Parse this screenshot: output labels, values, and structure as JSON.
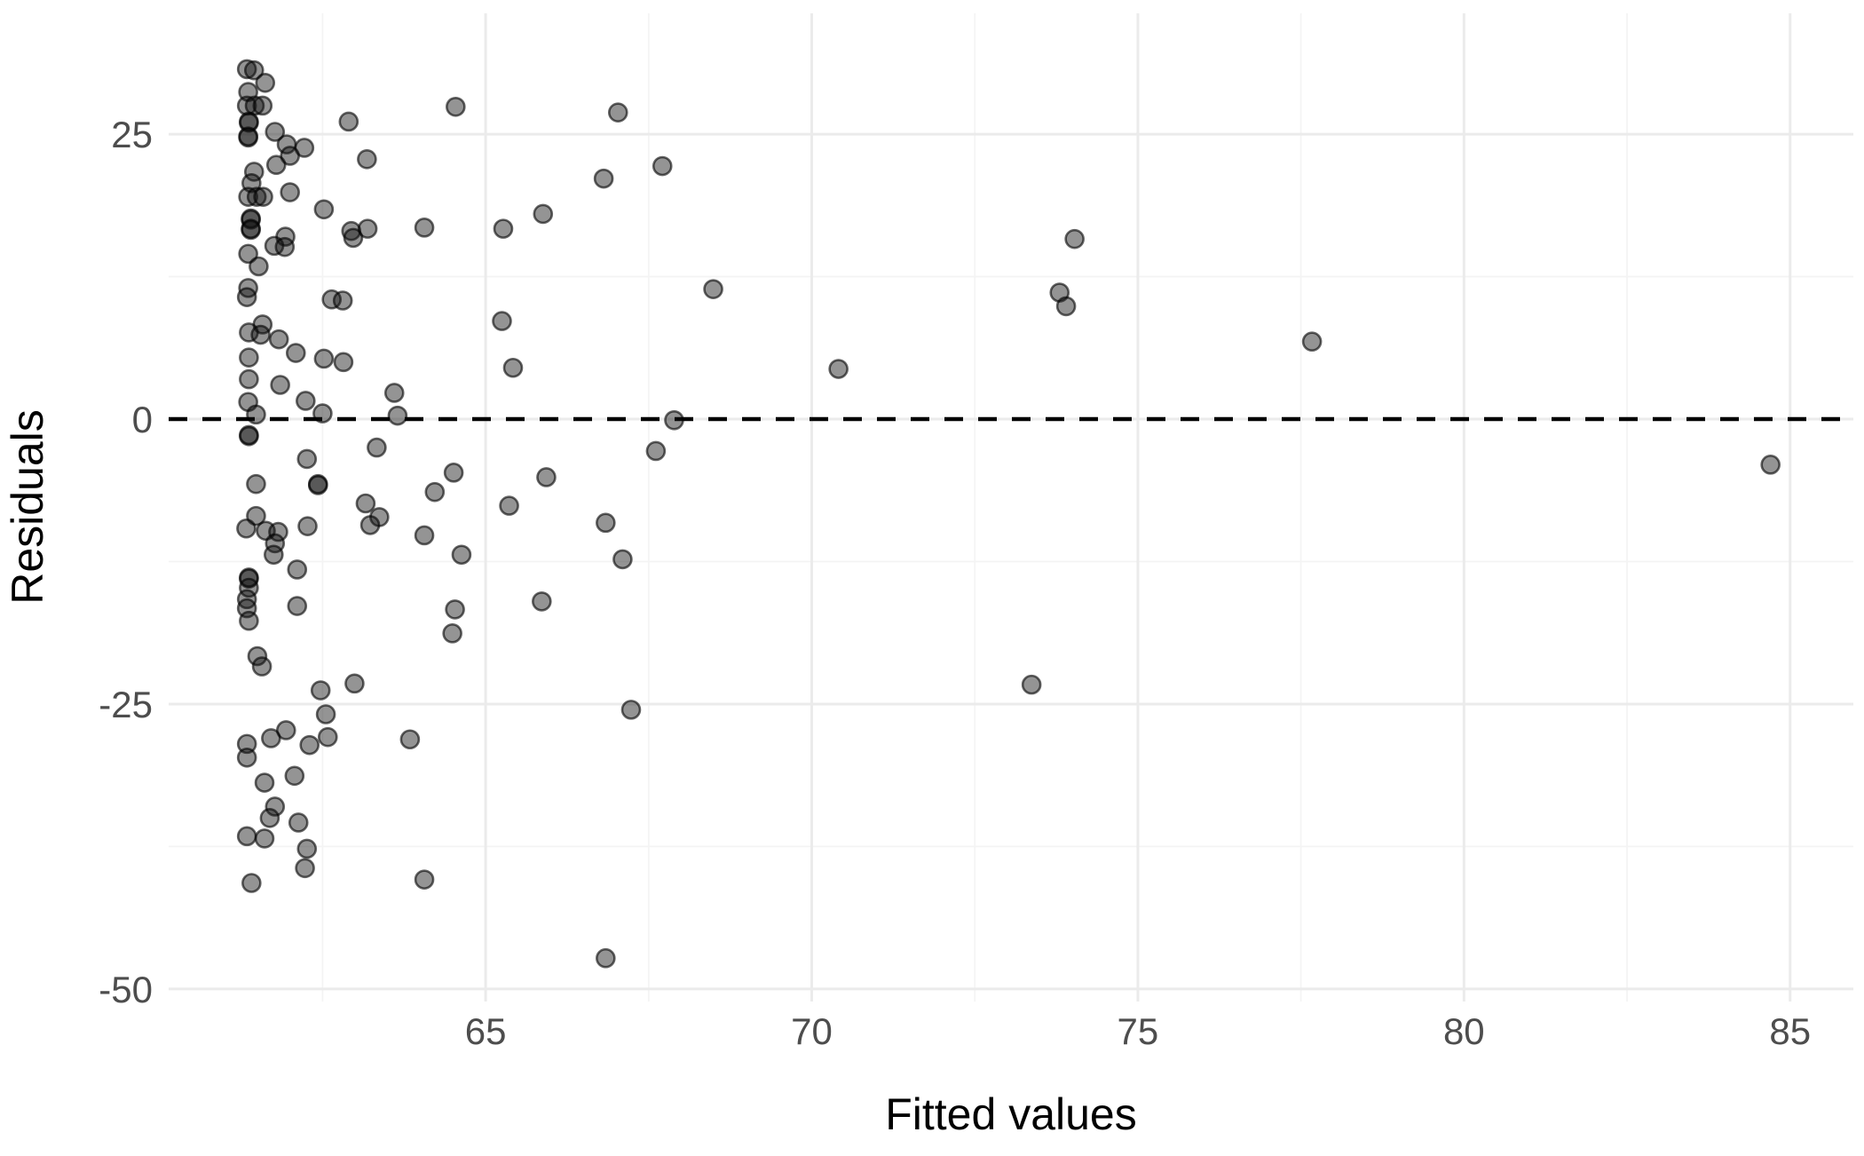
{
  "chart_data": {
    "type": "scatter",
    "title": "",
    "xlabel": "Fitted values",
    "ylabel": "Residuals",
    "xlim": [
      60.14,
      85.97
    ],
    "ylim": [
      -51.1,
      35.6
    ],
    "x_ticks": {
      "values": [
        65,
        70,
        75,
        80,
        85
      ],
      "labels": [
        "65",
        "70",
        "75",
        "80",
        "85"
      ]
    },
    "y_ticks": {
      "values": [
        25,
        0,
        -25,
        -50
      ],
      "labels": [
        "25",
        "0",
        "-25",
        "-50"
      ]
    },
    "x_minor": [
      62.5,
      67.5,
      72.5,
      77.5,
      82.5
    ],
    "y_minor": [
      12.5,
      -12.5,
      -37.5
    ],
    "grid": true,
    "legend": "none",
    "reference_line": {
      "y": 0,
      "linetype": "dashed",
      "color": "#000000"
    },
    "point_style": {
      "fill": "#111111",
      "fill_opacity": 0.45,
      "stroke": "#000000",
      "stroke_opacity": 0.6,
      "radius": 10,
      "stroke_width": 2.6
    },
    "colors": {
      "background": "#FFFFFF",
      "grid_major": "#EBEBEB",
      "grid_minor": "#F4F4F4",
      "tick_text": "#4D4D4D",
      "axis_title": "#000000"
    },
    "points": [
      [
        61.34,
        30.7
      ],
      [
        61.45,
        30.6
      ],
      [
        61.62,
        29.5
      ],
      [
        61.36,
        28.7
      ],
      [
        61.34,
        27.5
      ],
      [
        61.46,
        27.5
      ],
      [
        61.58,
        27.5
      ],
      [
        64.54,
        27.4
      ],
      [
        67.03,
        26.9
      ],
      [
        62.9,
        26.1
      ],
      [
        61.37,
        26.0
      ],
      [
        61.37,
        26.1
      ],
      [
        61.36,
        24.7
      ],
      [
        61.36,
        24.8
      ],
      [
        61.77,
        25.2
      ],
      [
        61.95,
        24.1
      ],
      [
        62.22,
        23.8
      ],
      [
        62.0,
        23.1
      ],
      [
        63.18,
        22.8
      ],
      [
        61.79,
        22.3
      ],
      [
        67.71,
        22.2
      ],
      [
        61.45,
        21.7
      ],
      [
        66.81,
        21.1
      ],
      [
        61.41,
        20.7
      ],
      [
        62.0,
        19.9
      ],
      [
        61.36,
        19.5
      ],
      [
        61.49,
        19.5
      ],
      [
        61.59,
        19.5
      ],
      [
        62.52,
        18.4
      ],
      [
        65.88,
        18.0
      ],
      [
        61.4,
        17.5
      ],
      [
        61.4,
        17.6
      ],
      [
        64.06,
        16.8
      ],
      [
        63.19,
        16.7
      ],
      [
        65.27,
        16.7
      ],
      [
        61.4,
        16.6
      ],
      [
        61.4,
        16.7
      ],
      [
        62.94,
        16.5
      ],
      [
        61.93,
        16.0
      ],
      [
        62.97,
        15.9
      ],
      [
        74.03,
        15.8
      ],
      [
        61.76,
        15.2
      ],
      [
        61.92,
        15.1
      ],
      [
        61.36,
        14.5
      ],
      [
        61.52,
        13.4
      ],
      [
        61.36,
        11.5
      ],
      [
        68.49,
        11.4
      ],
      [
        73.8,
        11.1
      ],
      [
        61.34,
        10.7
      ],
      [
        62.64,
        10.5
      ],
      [
        62.81,
        10.4
      ],
      [
        73.9,
        9.9
      ],
      [
        65.25,
        8.6
      ],
      [
        61.58,
        8.3
      ],
      [
        61.37,
        7.6
      ],
      [
        61.55,
        7.4
      ],
      [
        61.83,
        7.0
      ],
      [
        77.67,
        6.8
      ],
      [
        62.09,
        5.8
      ],
      [
        61.37,
        5.4
      ],
      [
        62.52,
        5.3
      ],
      [
        62.82,
        5.0
      ],
      [
        65.42,
        4.5
      ],
      [
        70.41,
        4.4
      ],
      [
        61.37,
        3.5
      ],
      [
        61.85,
        3.0
      ],
      [
        63.6,
        2.3
      ],
      [
        62.24,
        1.6
      ],
      [
        61.36,
        1.5
      ],
      [
        62.5,
        0.5
      ],
      [
        61.48,
        0.4
      ],
      [
        63.65,
        0.3
      ],
      [
        67.89,
        -0.1
      ],
      [
        61.37,
        -1.5
      ],
      [
        61.37,
        -1.4
      ],
      [
        63.33,
        -2.5
      ],
      [
        67.61,
        -2.8
      ],
      [
        62.26,
        -3.5
      ],
      [
        84.7,
        -4.0
      ],
      [
        64.51,
        -4.7
      ],
      [
        65.93,
        -5.1
      ],
      [
        61.48,
        -5.7
      ],
      [
        62.43,
        -5.7
      ],
      [
        62.43,
        -5.8
      ],
      [
        64.22,
        -6.4
      ],
      [
        63.16,
        -7.4
      ],
      [
        65.36,
        -7.6
      ],
      [
        61.48,
        -8.5
      ],
      [
        63.37,
        -8.6
      ],
      [
        66.84,
        -9.1
      ],
      [
        63.23,
        -9.3
      ],
      [
        62.27,
        -9.4
      ],
      [
        61.33,
        -9.6
      ],
      [
        61.63,
        -9.8
      ],
      [
        61.82,
        -9.9
      ],
      [
        64.06,
        -10.2
      ],
      [
        61.77,
        -10.9
      ],
      [
        61.75,
        -11.9
      ],
      [
        64.63,
        -11.9
      ],
      [
        67.1,
        -12.3
      ],
      [
        62.11,
        -13.2
      ],
      [
        61.37,
        -14.0
      ],
      [
        61.37,
        -13.9
      ],
      [
        61.37,
        -14.8
      ],
      [
        61.34,
        -15.8
      ],
      [
        65.86,
        -16.0
      ],
      [
        62.11,
        -16.4
      ],
      [
        61.34,
        -16.6
      ],
      [
        64.53,
        -16.7
      ],
      [
        61.37,
        -17.7
      ],
      [
        64.49,
        -18.8
      ],
      [
        61.5,
        -20.8
      ],
      [
        61.57,
        -21.7
      ],
      [
        62.99,
        -23.2
      ],
      [
        73.37,
        -23.3
      ],
      [
        62.47,
        -23.8
      ],
      [
        67.23,
        -25.5
      ],
      [
        62.55,
        -25.9
      ],
      [
        61.94,
        -27.3
      ],
      [
        62.58,
        -27.9
      ],
      [
        61.71,
        -28.0
      ],
      [
        63.84,
        -28.1
      ],
      [
        61.34,
        -28.5
      ],
      [
        62.3,
        -28.6
      ],
      [
        61.34,
        -29.7
      ],
      [
        62.07,
        -31.3
      ],
      [
        61.61,
        -31.9
      ],
      [
        61.77,
        -34.0
      ],
      [
        61.69,
        -35.0
      ],
      [
        62.13,
        -35.4
      ],
      [
        61.34,
        -36.6
      ],
      [
        61.61,
        -36.8
      ],
      [
        62.26,
        -37.7
      ],
      [
        62.23,
        -39.4
      ],
      [
        64.06,
        -40.4
      ],
      [
        61.41,
        -40.7
      ],
      [
        66.84,
        -47.3
      ]
    ]
  }
}
